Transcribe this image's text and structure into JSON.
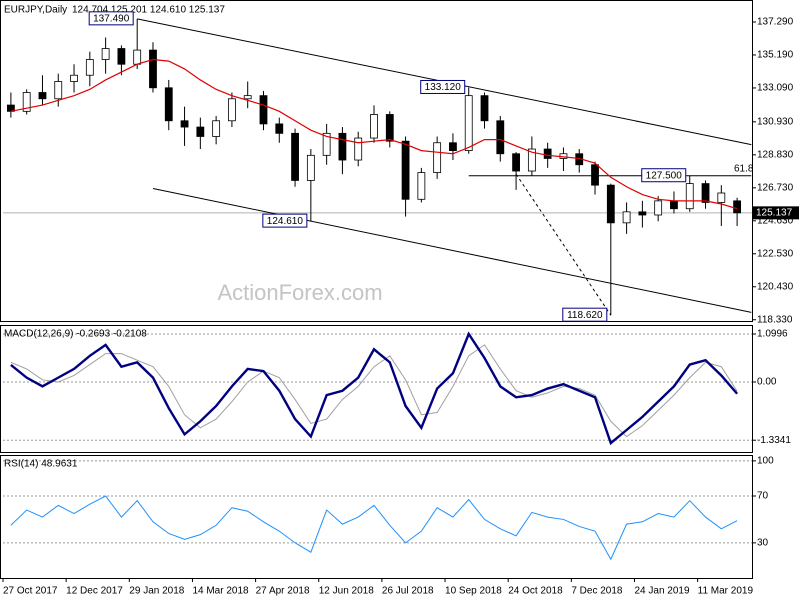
{
  "chart_data": [
    {
      "type": "candlestick",
      "title": "EURJPY,Daily",
      "subtitle": "124.704 125.201 124.610 125.137",
      "watermark": "ActionForex.com",
      "categories": [
        "27 Oct 2017",
        null,
        null,
        null,
        "12 Dec 2017",
        null,
        null,
        null,
        "29 Jan 2018",
        null,
        null,
        null,
        "14 Mar 2018",
        null,
        null,
        null,
        "27 Apr 2018",
        null,
        null,
        null,
        "12 Jun 2018",
        null,
        null,
        null,
        "26 Jul 2018",
        null,
        null,
        null,
        "10 Sep 2018",
        null,
        null,
        null,
        "24 Oct 2018",
        null,
        null,
        null,
        "7 Dec 2018",
        null,
        null,
        null,
        "24 Jan 2019",
        null,
        null,
        null,
        "11 Mar 2019",
        null,
        null
      ],
      "open": [
        132.0,
        131.6,
        132.8,
        132.4,
        133.5,
        133.9,
        134.9,
        135.6,
        134.6,
        135.5,
        133.1,
        131.0,
        130.6,
        130.0,
        131.0,
        132.4,
        132.6,
        130.8,
        130.2,
        127.2,
        128.8,
        130.2,
        128.5,
        129.9,
        131.4,
        129.7,
        126.0,
        127.7,
        129.6,
        129.1,
        132.6,
        131.0,
        128.9,
        127.8,
        129.2,
        128.6,
        128.9,
        128.2,
        126.9,
        124.5,
        125.2,
        125.0,
        125.9,
        125.4,
        127.0,
        125.8,
        125.9
      ],
      "high": [
        132.8,
        133.0,
        133.9,
        134.0,
        134.6,
        135.4,
        136.3,
        135.8,
        137.49,
        136.0,
        133.6,
        131.9,
        131.2,
        131.3,
        132.8,
        133.5,
        132.9,
        131.2,
        130.5,
        129.2,
        130.8,
        130.6,
        130.3,
        131.98,
        131.6,
        130.0,
        128.0,
        130.0,
        130.2,
        133.12,
        132.8,
        131.3,
        129.0,
        130.0,
        129.6,
        129.3,
        129.2,
        128.4,
        127.0,
        125.8,
        125.9,
        126.2,
        126.5,
        127.5,
        127.2,
        126.9,
        126.1
      ],
      "low": [
        131.2,
        131.4,
        132.0,
        131.9,
        132.8,
        133.2,
        134.0,
        133.9,
        134.3,
        132.8,
        130.4,
        129.4,
        129.2,
        129.5,
        130.6,
        131.8,
        130.4,
        129.6,
        126.8,
        124.61,
        128.2,
        127.6,
        128.1,
        129.6,
        129.3,
        124.9,
        125.8,
        127.3,
        128.5,
        128.9,
        130.5,
        128.4,
        126.6,
        127.5,
        128.0,
        127.8,
        127.7,
        126.3,
        118.62,
        123.8,
        124.2,
        124.6,
        125.1,
        125.2,
        125.4,
        124.3,
        124.3
      ],
      "close": [
        131.6,
        132.8,
        132.4,
        133.5,
        133.9,
        134.9,
        135.6,
        134.6,
        135.5,
        133.1,
        131.0,
        130.6,
        130.0,
        131.0,
        132.4,
        132.6,
        130.8,
        130.2,
        127.2,
        128.8,
        130.2,
        128.5,
        129.9,
        131.4,
        129.7,
        126.0,
        127.7,
        129.6,
        129.1,
        132.6,
        131.0,
        128.9,
        127.8,
        129.2,
        128.6,
        128.9,
        128.2,
        126.9,
        124.5,
        125.2,
        125.0,
        125.9,
        125.4,
        127.0,
        125.8,
        126.4,
        125.137
      ],
      "up_color": "#ffffff",
      "down_color": "#000000",
      "ma": {
        "color": "#e00000",
        "values": [
          131.6,
          131.8,
          132.0,
          132.3,
          132.6,
          133.0,
          133.6,
          134.1,
          134.6,
          134.9,
          134.8,
          134.3,
          133.6,
          133.0,
          132.6,
          132.3,
          132.0,
          131.6,
          131.0,
          130.4,
          130.0,
          129.8,
          129.6,
          129.7,
          129.8,
          129.5,
          129.1,
          129.0,
          128.9,
          129.3,
          129.8,
          129.8,
          129.4,
          129.0,
          128.8,
          128.7,
          128.6,
          128.3,
          127.4,
          126.8,
          126.3,
          126.0,
          125.9,
          125.9,
          125.9,
          125.7,
          125.4
        ]
      },
      "ylim": [
        118.25,
        138.69
      ],
      "yticks": [
        {
          "value": 137.29,
          "label": "137.290"
        },
        {
          "value": 135.19,
          "label": "135.190"
        },
        {
          "value": 133.09,
          "label": "133.090"
        },
        {
          "value": 130.93,
          "label": "130.930"
        },
        {
          "value": 128.83,
          "label": "128.830"
        },
        {
          "value": 126.73,
          "label": "126.730"
        },
        {
          "value": 124.63,
          "label": "124.630"
        },
        {
          "value": 122.53,
          "label": "122.530"
        },
        {
          "value": 120.43,
          "label": "120.430"
        },
        {
          "value": 118.33,
          "label": "118.330"
        }
      ],
      "last_price": {
        "value": 125.137,
        "label": "125.137"
      },
      "annotations": [
        {
          "bar": 8,
          "value": 137.49,
          "label": "137.490"
        },
        {
          "bar": 29,
          "value": 133.12,
          "label": "133.120"
        },
        {
          "bar": 19,
          "value": 124.61,
          "label": "124.610"
        },
        {
          "bar": 43,
          "value": 127.5,
          "label": "127.500"
        },
        {
          "bar": 38,
          "value": 118.62,
          "label": "118.620"
        }
      ],
      "lines": [
        {
          "x": [
            8,
            46.9
          ],
          "y": [
            137.49,
            129.48
          ],
          "style": "solid"
        },
        {
          "x": [
            9,
            46.9
          ],
          "y": [
            126.69,
            118.8
          ],
          "style": "solid"
        },
        {
          "x": [
            29,
            46.9
          ],
          "y": [
            127.5,
            127.5
          ],
          "style": "solid"
        },
        {
          "x": [
            32,
            38
          ],
          "y": [
            127.6,
            118.62
          ],
          "style": "dashed"
        }
      ],
      "fib_label": 61.8
    },
    {
      "type": "macd",
      "title": "MACD(12,26,9) -0.2693 -0.2108",
      "grid": true,
      "series": [
        {
          "color": "#000080",
          "values": [
            0.39,
            0.1,
            -0.1,
            0.1,
            0.3,
            0.6,
            0.85,
            0.35,
            0.45,
            0.1,
            -0.6,
            -1.2,
            -0.9,
            -0.55,
            -0.1,
            0.3,
            0.25,
            -0.2,
            -0.85,
            -1.25,
            -0.3,
            -0.2,
            0.1,
            0.75,
            0.45,
            -0.55,
            -1.05,
            -0.15,
            0.2,
            1.1,
            0.55,
            -0.1,
            -0.35,
            -0.3,
            -0.15,
            -0.05,
            -0.2,
            -0.35,
            -1.4,
            -1.1,
            -0.8,
            -0.45,
            -0.1,
            0.4,
            0.5,
            0.15,
            -0.2693
          ]
        },
        {
          "color": "#a0a0a0",
          "values": [
            0.45,
            0.3,
            0.05,
            0.0,
            0.15,
            0.4,
            0.65,
            0.65,
            0.5,
            0.35,
            -0.1,
            -0.75,
            -1.05,
            -0.85,
            -0.45,
            0.0,
            0.25,
            0.1,
            -0.4,
            -0.95,
            -0.85,
            -0.4,
            -0.1,
            0.35,
            0.6,
            0.05,
            -0.75,
            -0.7,
            -0.1,
            0.6,
            0.85,
            0.3,
            -0.2,
            -0.35,
            -0.25,
            -0.1,
            -0.15,
            -0.3,
            -0.9,
            -1.25,
            -1.0,
            -0.65,
            -0.3,
            0.1,
            0.45,
            0.35,
            -0.2108
          ]
        }
      ],
      "ylim": [
        -1.604,
        1.306
      ],
      "yticks": [
        1.0996,
        {
          "value": 0,
          "label": "0.00"
        },
        -1.3341
      ]
    },
    {
      "type": "rsi",
      "title": "RSI(14) 48.9631",
      "grid": true,
      "series": [
        {
          "color": "#1e90ff",
          "values": [
            45,
            58,
            52,
            62,
            55,
            63,
            70,
            52,
            66,
            48,
            38,
            33,
            37,
            45,
            60,
            57,
            48,
            40,
            30,
            22,
            58,
            46,
            52,
            62,
            45,
            30,
            40,
            60,
            52,
            67,
            50,
            42,
            36,
            56,
            52,
            50,
            44,
            40,
            16,
            46,
            48,
            55,
            52,
            66,
            52,
            42,
            48.9631
          ]
        }
      ],
      "ylim": [
        0,
        105
      ],
      "yticks": [
        100,
        70,
        30
      ]
    }
  ]
}
